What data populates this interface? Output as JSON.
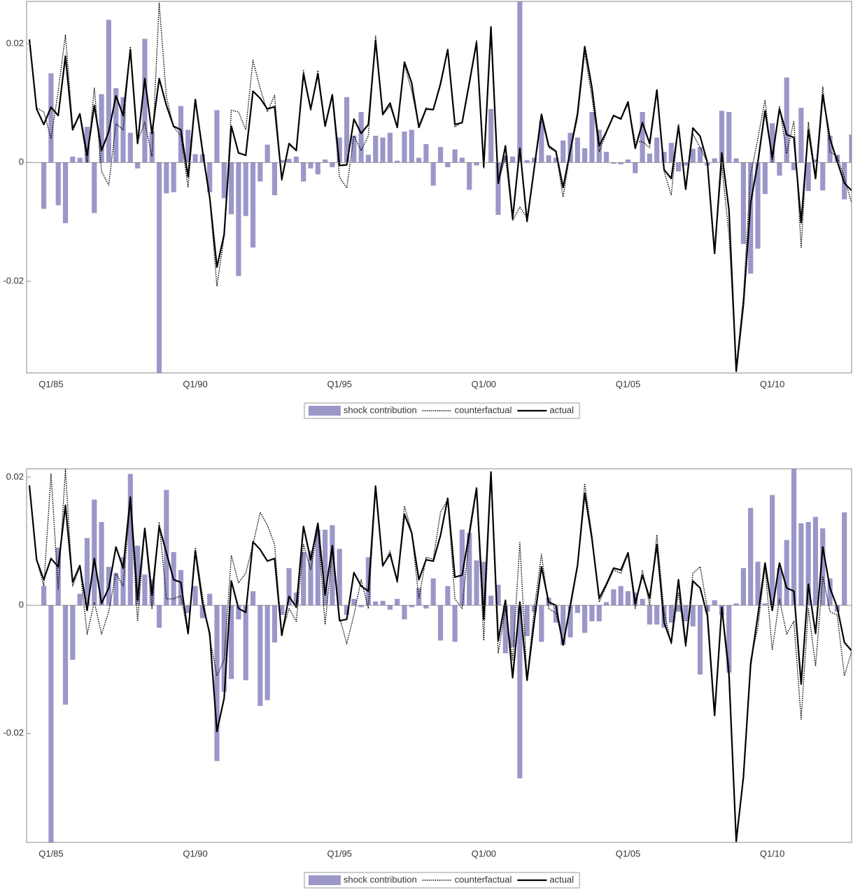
{
  "chart_data": [
    {
      "type": "combo",
      "legend": "bottom",
      "categories": [
        null,
        null,
        null,
        "Q1/85",
        null,
        null,
        null,
        null,
        null,
        null,
        null,
        null,
        null,
        null,
        null,
        null,
        null,
        null,
        null,
        null,
        null,
        null,
        null,
        "Q1/90",
        null,
        null,
        null,
        null,
        null,
        null,
        null,
        null,
        null,
        null,
        null,
        null,
        null,
        null,
        null,
        null,
        null,
        null,
        null,
        "Q1/95",
        null,
        null,
        null,
        null,
        null,
        null,
        null,
        null,
        null,
        null,
        null,
        null,
        null,
        null,
        null,
        null,
        null,
        null,
        null,
        "Q1/00",
        null,
        null,
        null,
        null,
        null,
        null,
        null,
        null,
        null,
        null,
        null,
        null,
        null,
        null,
        null,
        null,
        null,
        null,
        null,
        "Q1/05",
        null,
        null,
        null,
        null,
        null,
        null,
        null,
        null,
        null,
        null,
        null,
        null,
        null,
        null,
        null,
        null,
        null,
        null,
        null,
        "Q1/10",
        null,
        null,
        null,
        null,
        null,
        null,
        null,
        null,
        null,
        null,
        null
      ],
      "ylim": [
        -0.0354,
        0.0271
      ],
      "yticks": [
        -0.02,
        0,
        0.02
      ],
      "series": [
        {
          "name": "shock contribution",
          "kind": "bar",
          "color": "#9b97c9",
          "values": [
            0,
            0,
            -0.0078,
            0.015,
            -0.0072,
            -0.0102,
            0.001,
            0.0008,
            0.006,
            -0.0085,
            0.0115,
            0.024,
            0.0125,
            0.011,
            0.005,
            -0.001,
            0.0208,
            0.0052,
            -0.0355,
            -0.0052,
            -0.005,
            0.0095,
            0.0055,
            0.0014,
            0.0014,
            -0.005,
            0.0088,
            -0.006,
            -0.0087,
            -0.0191,
            -0.009,
            -0.0143,
            -0.0032,
            0.003,
            -0.0055,
            0.0004,
            0.0006,
            0.001,
            -0.0032,
            -0.001,
            -0.002,
            0.0005,
            -0.0008,
            0.0042,
            0.011,
            0.0045,
            0.0085,
            0.0013,
            0.0045,
            0.0042,
            0.005,
            0.0003,
            0.0052,
            0.0055,
            0.0008,
            0.0031,
            -0.0039,
            0.0026,
            -0.0008,
            0.0022,
            0.0008,
            -0.0046,
            -0.0005,
            0,
            0.009,
            -0.0088,
            0.0012,
            0.001,
            0.0272,
            0.0004,
            0.0008,
            0.007,
            0.0012,
            0.0008,
            0.0037,
            0.005,
            0.0042,
            0.0024,
            0.0085,
            0.0055,
            0.0018,
            -0.0002,
            -0.0003,
            0.0005,
            -0.0018,
            0.0085,
            0.0015,
            0.0042,
            0.0018,
            0.0033,
            -0.0015,
            -0.0005,
            0.0023,
            0.0026,
            -0.0005,
            0.0007,
            0.0087,
            0.0085,
            0.0007,
            -0.0137,
            -0.0187,
            -0.0145,
            -0.0053,
            0.0066,
            -0.0022,
            0.0143,
            -0.0013,
            0.0092,
            -0.0048,
            0.0005,
            -0.0047,
            0.0045,
            0.0013,
            -0.0062,
            0.0047
          ]
        },
        {
          "name": "counterfactual",
          "kind": "line",
          "dash": "dotted",
          "color": "#000000",
          "values": [
            0.0207,
            0.0092,
            0.0085,
            0.004,
            0.012,
            0.0215,
            0.006,
            0.0078,
            0,
            0.0125,
            -0.0015,
            -0.0038,
            0.0065,
            0.0055,
            0.0195,
            0.0035,
            0.0068,
            0.001,
            0.0268,
            0.011,
            0.006,
            0.0045,
            -0.0042,
            0.0105,
            0.0015,
            -0.006,
            -0.0208,
            -0.0125,
            0.0088,
            0.0085,
            0.0055,
            0.0172,
            0.0125,
            0.0085,
            0.0113,
            -0.003,
            0.003,
            0.002,
            0.0155,
            0.0088,
            0.0155,
            0.0062,
            0.011,
            -0.0025,
            -0.0043,
            0.0045,
            0.002,
            0.0045,
            0.0213,
            0.008,
            0.0095,
            0.006,
            0.0165,
            0.012,
            0.0062,
            0.0092,
            0.0088,
            0.0135,
            0.0188,
            0.006,
            0.0068,
            0.013,
            0.0205,
            -0.001,
            0.0215,
            -0.0035,
            0.001,
            -0.0098,
            -0.0075,
            -0.0093,
            -0.0012,
            0.0075,
            0.0025,
            0.0018,
            -0.0058,
            0.0018,
            0.0075,
            0.0185,
            0.011,
            0.0018,
            0.005,
            0.0078,
            0.0075,
            0.0098,
            0.0035,
            0.0035,
            0.0025,
            0.012,
            -0.0015,
            -0.0055,
            0.0065,
            -0.0045,
            0.0048,
            0.0025,
            0,
            -0.0145,
            -0.0005,
            -0.0122,
            -0.0345,
            -0.0225,
            -0.002,
            0.004,
            0.0105,
            0,
            0.0095,
            0.0015,
            0.007,
            -0.0143,
            0.0068,
            -0.0022,
            0.0127,
            0.0018,
            0.001,
            -0.0025,
            -0.0068
          ]
        },
        {
          "name": "actual",
          "kind": "line",
          "dash": "solid",
          "color": "#000000",
          "values": [
            0.0207,
            0.009,
            0.0064,
            0.0093,
            0.0079,
            0.0179,
            0.0055,
            0.0082,
            0.0012,
            0.0096,
            0.002,
            0.0052,
            0.0112,
            0.0079,
            0.019,
            0.0032,
            0.0141,
            0.0049,
            0.0141,
            0.0096,
            0.0061,
            0.0055,
            -0.0024,
            0.0106,
            0.002,
            -0.0059,
            -0.0176,
            -0.0121,
            0.0061,
            0.0016,
            0.0012,
            0.012,
            0.0108,
            0.009,
            0.0094,
            -0.0028,
            0.0032,
            0.002,
            0.0149,
            0.009,
            0.0149,
            0.0061,
            0.0114,
            -0.0005,
            -0.0004,
            0.0073,
            0.0049,
            0.0064,
            0.0205,
            0.0081,
            0.01,
            0.0059,
            0.0169,
            0.0134,
            0.0059,
            0.009,
            0.0089,
            0.0132,
            0.019,
            0.0064,
            0.0067,
            0.0134,
            0.0202,
            -0.0007,
            0.0228,
            -0.0035,
            0.0028,
            -0.0094,
            0.0024,
            -0.0099,
            -0.0009,
            0.0081,
            0.0028,
            0.0019,
            -0.0042,
            0.002,
            0.0082,
            0.0195,
            0.0126,
            0.0028,
            0.0052,
            0.0079,
            0.0073,
            0.0102,
            0.0024,
            0.0067,
            0.0032,
            0.0122,
            -0.0012,
            -0.0027,
            0.0061,
            -0.0045,
            0.0058,
            0.0044,
            0,
            -0.0153,
            0.0016,
            -0.008,
            -0.0351,
            -0.0239,
            -0.0068,
            0,
            0.0087,
            0.0008,
            0.009,
            0.0047,
            0.0042,
            -0.0101,
            0.0055,
            -0.0027,
            0.0114,
            0.004,
            0.0002,
            -0.0035,
            -0.0047
          ]
        }
      ]
    },
    {
      "type": "combo",
      "legend": "bottom",
      "categories": [
        null,
        null,
        null,
        "Q1/85",
        null,
        null,
        null,
        null,
        null,
        null,
        null,
        null,
        null,
        null,
        null,
        null,
        null,
        null,
        null,
        null,
        null,
        null,
        null,
        "Q1/90",
        null,
        null,
        null,
        null,
        null,
        null,
        null,
        null,
        null,
        null,
        null,
        null,
        null,
        null,
        null,
        null,
        null,
        null,
        null,
        "Q1/95",
        null,
        null,
        null,
        null,
        null,
        null,
        null,
        null,
        null,
        null,
        null,
        null,
        null,
        null,
        null,
        null,
        null,
        null,
        null,
        "Q1/00",
        null,
        null,
        null,
        null,
        null,
        null,
        null,
        null,
        null,
        null,
        null,
        null,
        null,
        null,
        null,
        null,
        null,
        null,
        null,
        "Q1/05",
        null,
        null,
        null,
        null,
        null,
        null,
        null,
        null,
        null,
        null,
        null,
        null,
        null,
        null,
        null,
        null,
        null,
        null,
        null,
        "Q1/10",
        null,
        null,
        null,
        null,
        null,
        null,
        null,
        null,
        null,
        null,
        null
      ],
      "ylim": [
        -0.037,
        0.0213
      ],
      "yticks": [
        -0.02,
        0,
        0.02
      ],
      "series": [
        {
          "name": "shock contribution",
          "kind": "bar",
          "color": "#9b97c9",
          "values": [
            0,
            0,
            0.003,
            -0.037,
            0.009,
            -0.0155,
            -0.0085,
            0.0018,
            0.0105,
            0.0165,
            0.013,
            0.006,
            0.005,
            0.0075,
            0.0205,
            0.0093,
            0.0048,
            0.004,
            -0.0035,
            0.018,
            0.0083,
            0.0055,
            -0.0012,
            0.003,
            -0.002,
            0.0018,
            -0.0243,
            -0.0135,
            -0.0115,
            -0.0022,
            -0.0117,
            0.0022,
            -0.0157,
            -0.0148,
            -0.0058,
            -0.0015,
            0.0058,
            0.002,
            0.0083,
            0.0085,
            0.0118,
            0.0118,
            0.0125,
            0.0088,
            -0.0015,
            0.001,
            -0.0003,
            0.0075,
            0.0006,
            0.0007,
            -0.0007,
            0.001,
            -0.0022,
            -0.0003,
            0.0027,
            -0.0005,
            0.0042,
            -0.0055,
            0.003,
            -0.0057,
            0.0118,
            0.0113,
            0.007,
            0.0068,
            0.0015,
            0.0032,
            -0.0075,
            -0.0065,
            -0.027,
            -0.0048,
            -0.001,
            -0.0057,
            0.0012,
            -0.0027,
            -0.0062,
            -0.005,
            -0.0012,
            -0.0043,
            -0.0025,
            -0.0025,
            0.0005,
            0.0025,
            0.003,
            0.0022,
            0.002,
            0.001,
            -0.003,
            -0.003,
            -0.0035,
            -0.0027,
            -0.001,
            -0.0025,
            -0.0033,
            -0.0108,
            -0.001,
            0.0008,
            -0.0015,
            -0.0105,
            0.0003,
            0.0058,
            0.0152,
            0.0068,
            0.0003,
            0.0172,
            0.0058,
            0.0102,
            0.0213,
            0.0128,
            0.013,
            0.0138,
            0.012,
            0.0042,
            -0.001,
            0.0145,
            0
          ]
        },
        {
          "name": "counterfactual",
          "kind": "line",
          "dash": "dotted",
          "color": "#000000",
          "values": [
            0.0187,
            0.0071,
            0.003,
            0.0205,
            0.0025,
            0.0212,
            0.003,
            0.006,
            -0.0045,
            0.0005,
            -0.0045,
            -0.001,
            0.005,
            0.003,
            0.016,
            -0.0025,
            0.012,
            -0.0005,
            0.013,
            0.001,
            0.001,
            0.0015,
            -0.0045,
            0.009,
            0.0015,
            -0.005,
            -0.011,
            -0.0085,
            0.0078,
            0.0035,
            0.005,
            0.0095,
            0.0145,
            0.0125,
            0.0095,
            -0.0045,
            -0.0005,
            -0.0025,
            0.0095,
            0.0055,
            0.012,
            -0.003,
            0.0085,
            -0.0018,
            -0.006,
            -0.0015,
            0.004,
            -0.0005,
            0.018,
            0.006,
            0.0085,
            0.0035,
            0.0155,
            0.0115,
            0.001,
            0.0075,
            0.0072,
            0.0145,
            0.0165,
            0.001,
            -0.0005,
            0.0105,
            0.018,
            -0.0055,
            0.0205,
            -0.0075,
            -0.0005,
            -0.0085,
            0.0098,
            -0.0115,
            -0.0005,
            0.008,
            -0.0005,
            -0.0012,
            -0.006,
            -0.0005,
            0.006,
            0.019,
            0.011,
            0.0005,
            0.003,
            0.0055,
            0.005,
            0.008,
            -0.0005,
            0.0055,
            0,
            0.011,
            -0.001,
            -0.006,
            0.002,
            -0.0065,
            0.005,
            0.006,
            -0.0005,
            -0.0165,
            -0.0005,
            -0.0095,
            -0.037,
            -0.0265,
            -0.0085,
            -0.0035,
            0.006,
            -0.007,
            0.001,
            -0.0045,
            -0.0025,
            -0.0178,
            -0.0005,
            -0.0095,
            0.0045,
            -0.001,
            -0.0015,
            -0.011,
            -0.0072
          ]
        },
        {
          "name": "actual",
          "kind": "line",
          "dash": "solid",
          "color": "#000000",
          "values": [
            0.0187,
            0.0071,
            0.004,
            0.0073,
            0.006,
            0.0156,
            0.0036,
            0.0062,
            -0.0008,
            0.0073,
            0.0003,
            0.0027,
            0.0091,
            0.0058,
            0.0169,
            0.0008,
            0.012,
            0.0016,
            0.0123,
            0.0082,
            0.004,
            0.0036,
            -0.0044,
            0.0085,
            0.0003,
            -0.0044,
            -0.0197,
            -0.0145,
            0.0038,
            -0.0005,
            -0.0011,
            0.0099,
            0.0087,
            0.0069,
            0.0073,
            -0.0047,
            0.0014,
            -0.0003,
            0.0123,
            0.0071,
            0.0128,
            0.0016,
            0.0093,
            -0.0024,
            -0.0022,
            0.0051,
            0.003,
            0.0022,
            0.0186,
            0.0062,
            0.008,
            0.0038,
            0.0142,
            0.0113,
            0.004,
            0.0071,
            0.0069,
            0.0109,
            0.0167,
            0.0044,
            0.0047,
            0.0113,
            0.0183,
            -0.0022,
            0.0208,
            -0.0055,
            0.0008,
            -0.0113,
            0.0005,
            -0.0117,
            -0.0025,
            0.006,
            0.0005,
            0,
            -0.0062,
            0,
            0.0062,
            0.0175,
            0.0104,
            0.0011,
            0.0033,
            0.0058,
            0.0055,
            0.0082,
            0.0003,
            0.0047,
            0.0011,
            0.0095,
            -0.0027,
            -0.0058,
            0.004,
            -0.0062,
            0.0038,
            0.0027,
            -0.0016,
            -0.0172,
            -0.0003,
            -0.0109,
            -0.0368,
            -0.0268,
            -0.0093,
            -0.0016,
            0.0066,
            -0.0008,
            0.0066,
            0.0027,
            0.0022,
            -0.0123,
            0.0033,
            -0.0044,
            0.0091,
            0.0027,
            -0.0003,
            -0.0058,
            -0.0071
          ]
        }
      ]
    }
  ]
}
